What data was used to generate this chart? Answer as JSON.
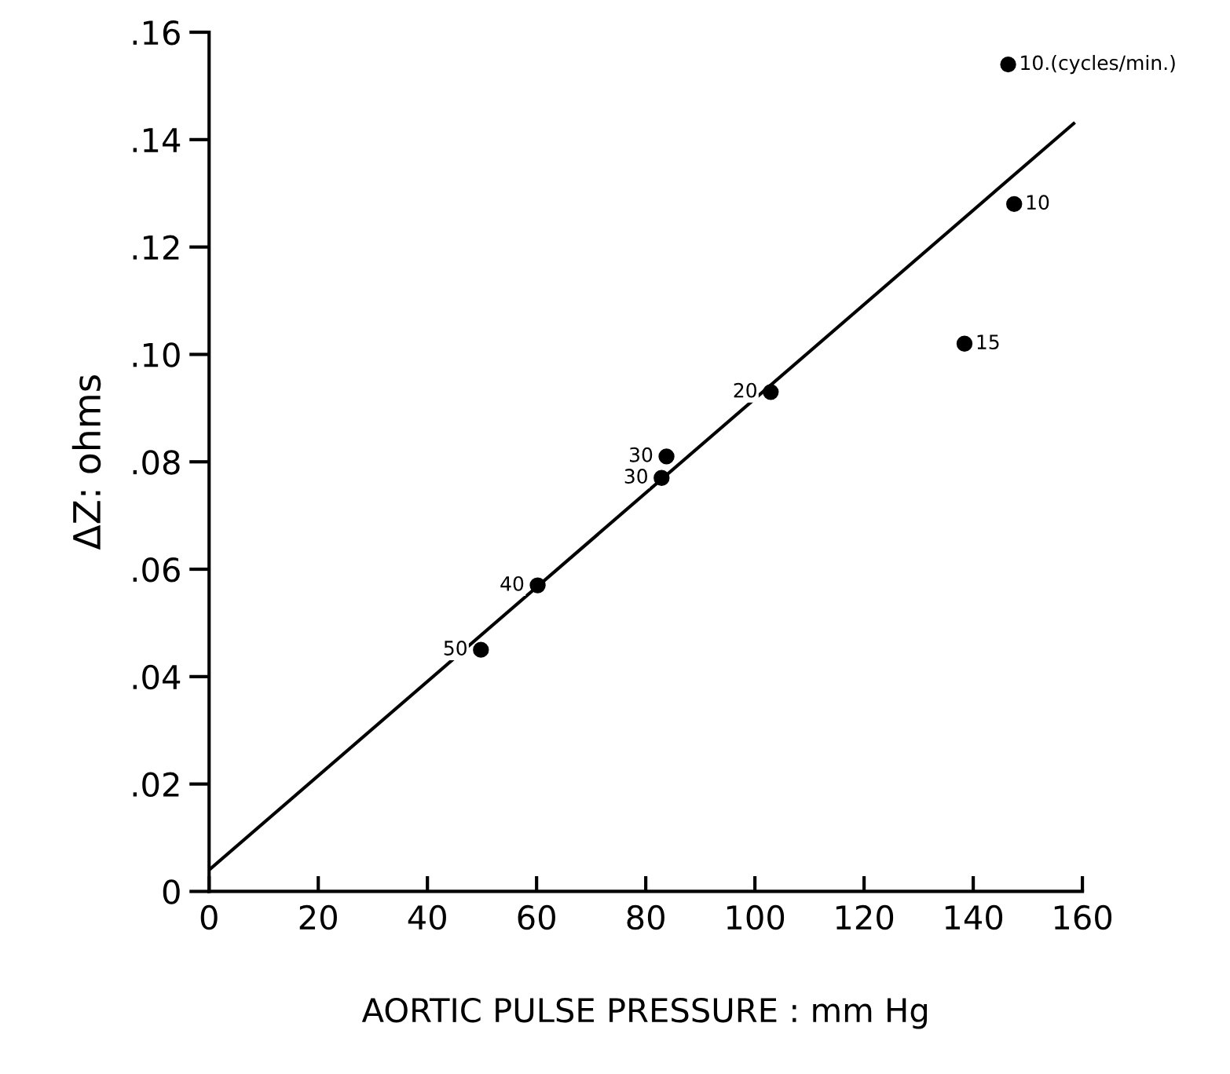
{
  "chart_data": {
    "type": "scatter",
    "xlabel": "AORTIC PULSE PRESSURE : mm Hg",
    "ylabel": "ΔZ: ohms",
    "xlim": [
      0,
      160
    ],
    "xticks": [
      0,
      20,
      40,
      60,
      80,
      100,
      120,
      140,
      160
    ],
    "ylim": [
      0,
      0.16
    ],
    "yticks": [
      {
        "value": 0,
        "label": "0"
      },
      {
        "value": 0.02,
        "label": ".02"
      },
      {
        "value": 0.04,
        "label": ".04"
      },
      {
        "value": 0.06,
        "label": ".06"
      },
      {
        "value": 0.08,
        "label": ".08"
      },
      {
        "value": 0.1,
        "label": ".10"
      },
      {
        "value": 0.12,
        "label": ".12"
      },
      {
        "value": 0.14,
        "label": ".14"
      },
      {
        "value": 0.16,
        "label": ".16"
      }
    ],
    "grid": false,
    "series": [
      {
        "color": "#000000",
        "marker": "circle",
        "x": [
          146.4,
          147.5,
          138.4,
          102.9,
          83.8,
          82.9,
          60.2,
          49.8
        ],
        "values": [
          0.154,
          0.128,
          0.102,
          0.093,
          0.081,
          0.077,
          0.057,
          0.045
        ]
      },
      {
        "type": "line",
        "color": "#000000",
        "x": [
          0,
          158.4
        ],
        "values": [
          0.004,
          0.143
        ]
      }
    ],
    "annotations": [
      {
        "text": "10.(cycles/min.)",
        "x": 146.4,
        "y": 0.154
      },
      {
        "text": "10",
        "x": 147.5,
        "y": 0.128
      },
      {
        "text": "15",
        "x": 138.4,
        "y": 0.102
      },
      {
        "text": "20",
        "x": 102.9,
        "y": 0.093
      },
      {
        "text": "30",
        "x": 83.8,
        "y": 0.081
      },
      {
        "text": "30",
        "x": 82.9,
        "y": 0.077
      },
      {
        "text": "40",
        "x": 60.2,
        "y": 0.057
      },
      {
        "text": "50",
        "x": 49.8,
        "y": 0.045
      }
    ]
  }
}
